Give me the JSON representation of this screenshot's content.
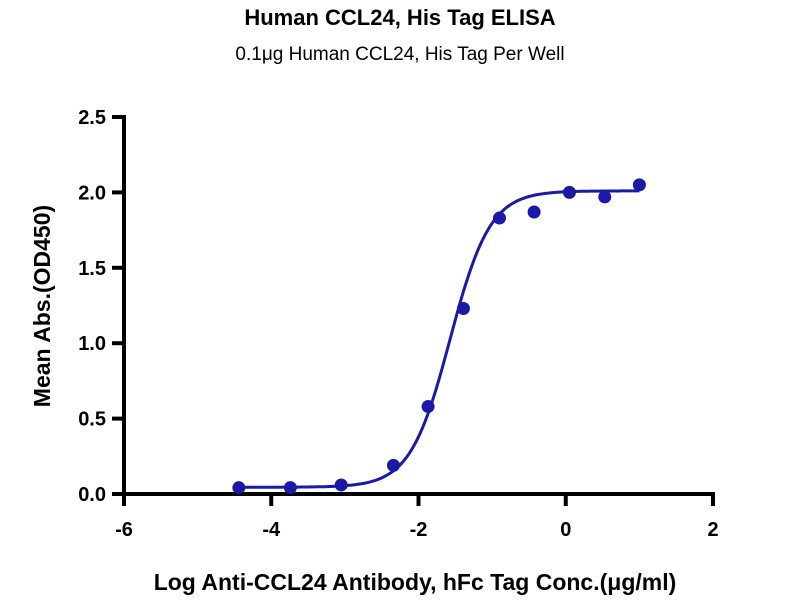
{
  "chart_data": {
    "type": "scatter",
    "title": "Human CCL24, His Tag ELISA",
    "subtitle": "0.1μg Human CCL24, His Tag Per Well",
    "xlabel": "Log Anti-CCL24 Antibody, hFc Tag Conc.(μg/ml)",
    "ylabel": "Mean Abs.(OD450)",
    "xlim": [
      -6,
      2
    ],
    "ylim": [
      0,
      2.5
    ],
    "xticks": [
      "-6",
      "-4",
      "-2",
      "0",
      "2"
    ],
    "xtick_values": [
      -6,
      -4,
      -2,
      0,
      2
    ],
    "yticks": [
      "0.0",
      "0.5",
      "1.0",
      "1.5",
      "2.0",
      "2.5"
    ],
    "ytick_values": [
      0,
      0.5,
      1.0,
      1.5,
      2.0,
      2.5
    ],
    "grid": false,
    "series": [
      {
        "name": "Mean Abs.",
        "color": "#1a1aa6",
        "x": [
          -4.44,
          -3.74,
          -3.05,
          -2.34,
          -1.87,
          -1.39,
          -0.9,
          -0.43,
          0.05,
          0.53,
          1.0
        ],
        "y": [
          0.042,
          0.042,
          0.06,
          0.19,
          0.58,
          1.23,
          1.83,
          1.87,
          2.0,
          1.97,
          2.05
        ]
      }
    ],
    "fit": {
      "type": "4PL",
      "color": "#1a1aa6",
      "bottom": 0.045,
      "top": 2.01,
      "logEC50": -1.57,
      "hill": 1.6,
      "x_range": [
        -4.44,
        1.0
      ]
    }
  }
}
